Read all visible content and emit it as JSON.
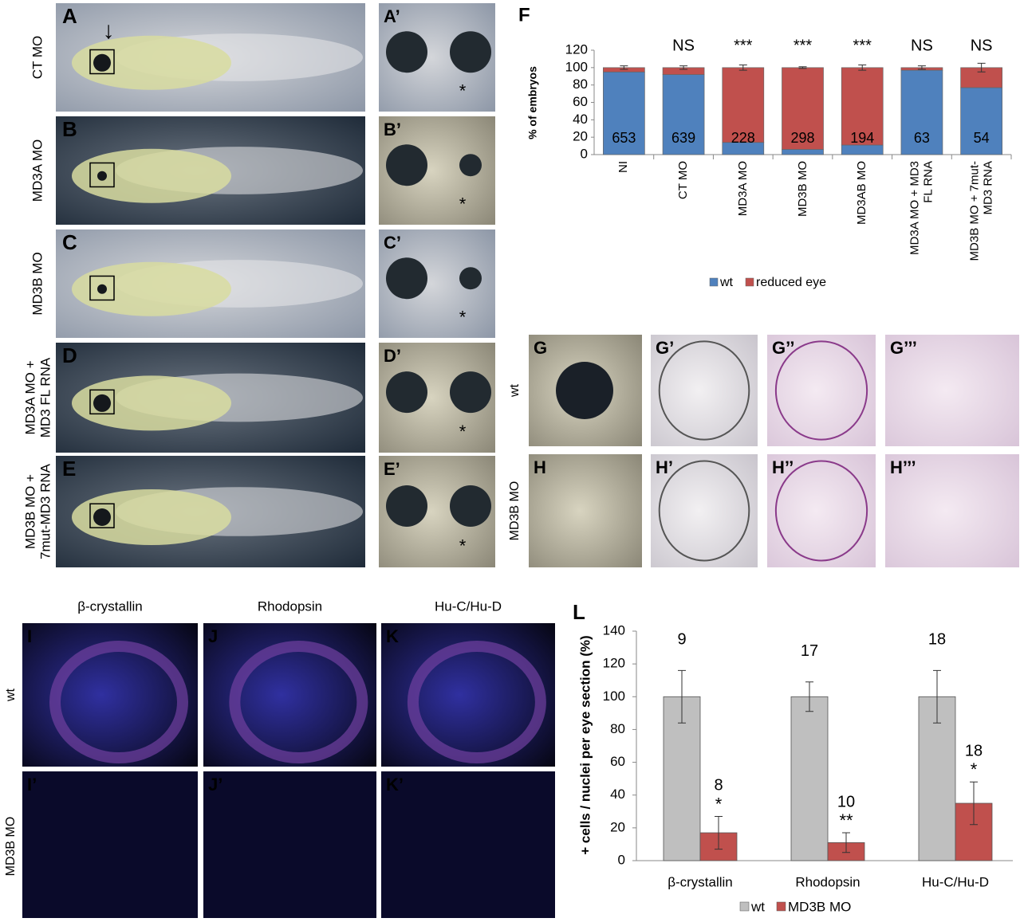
{
  "tadpole_panels": {
    "labels": [
      "A",
      "B",
      "C",
      "D",
      "E"
    ],
    "closeup_labels": [
      "A’",
      "B’",
      "C’",
      "D’",
      "E’"
    ],
    "row_labels": [
      "CT MO",
      "MD3A MO",
      "MD3B MO",
      "MD3A MO + MD3 FL RNA",
      "MD3B MO + 7mut-MD3 RNA"
    ]
  },
  "section_panels": {
    "labels": [
      [
        "G",
        "G’",
        "G’’",
        "G’’’"
      ],
      [
        "H",
        "H’",
        "H’’",
        "H’’’"
      ]
    ],
    "row_labels": [
      "wt",
      "MD3B MO"
    ]
  },
  "stain_panels": {
    "column_titles": [
      "β-crystallin",
      "Rhodopsin",
      "Hu-C/Hu-D"
    ],
    "labels": [
      [
        "I",
        "J",
        "K"
      ],
      [
        "I’",
        "J’",
        "K’"
      ]
    ],
    "row_labels": [
      "wt",
      "MD3B MO"
    ]
  },
  "chart_data": [
    {
      "type": "stacked-bar",
      "panel_label": "F",
      "y_label": "% of embryos",
      "categories": [
        "NI",
        "CT MO",
        "MD3A MO",
        "MD3B MO",
        "MD3AB MO",
        "MD3A MO + MD3 FL RNA",
        "MD3B MO + 7mut-MD3 RNA"
      ],
      "series": [
        {
          "name": "wt",
          "color": "#4f81bd",
          "values": [
            95,
            92,
            14,
            6,
            11,
            97,
            77
          ]
        },
        {
          "name": "reduced eye",
          "color": "#c0504d",
          "values": [
            5,
            8,
            86,
            94,
            89,
            3,
            23
          ],
          "errors": [
            2,
            2,
            3,
            1,
            3,
            2,
            5
          ]
        }
      ],
      "n_labels": [
        "653",
        "639",
        "228",
        "298",
        "194",
        "63",
        "54"
      ],
      "significance": [
        null,
        "NS",
        "***",
        "***",
        "***",
        "NS",
        "NS"
      ],
      "ylim": [
        0,
        120
      ],
      "yticks": [
        0,
        20,
        40,
        60,
        80,
        100,
        120
      ],
      "legend": "bottom"
    },
    {
      "type": "grouped-bar",
      "panel_label": "L",
      "y_label": "+ cells / nuclei per eye section (%)",
      "categories": [
        "β-crystallin",
        "Rhodopsin",
        "Hu-C/Hu-D"
      ],
      "series": [
        {
          "name": "wt",
          "color": "#bfbfbf",
          "values": [
            100,
            100,
            100
          ],
          "errors": [
            16,
            9,
            16
          ],
          "n_labels": [
            "9",
            "17",
            "18"
          ]
        },
        {
          "name": "MD3B MO",
          "color": "#c0504d",
          "values": [
            17,
            11,
            35
          ],
          "errors": [
            10,
            6,
            13
          ],
          "n_labels": [
            "8",
            "10",
            "18"
          ],
          "significance": [
            "*",
            "**",
            "*"
          ]
        }
      ],
      "ylim": [
        0,
        140
      ],
      "yticks": [
        0,
        20,
        40,
        60,
        80,
        100,
        120,
        140
      ],
      "legend": "bottom"
    }
  ]
}
